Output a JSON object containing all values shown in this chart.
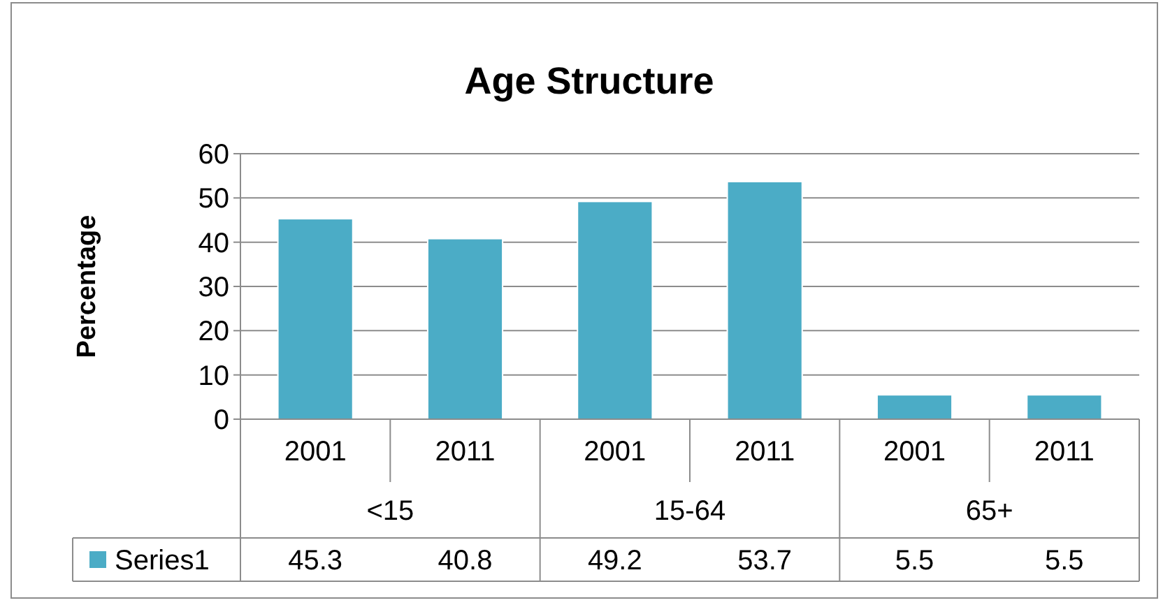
{
  "chart_data": {
    "type": "bar",
    "title": "Age Structure",
    "ylabel": "Percentage",
    "categories": [
      "2001",
      "2011",
      "2001",
      "2011",
      "2001",
      "2011"
    ],
    "annotations": [
      "<15",
      "15-64",
      "65+"
    ],
    "series": [
      {
        "name": "Series1",
        "color": "#4bacc6",
        "values": [
          45.3,
          40.8,
          49.2,
          53.7,
          5.5,
          5.5
        ]
      }
    ],
    "ylim": [
      0,
      60
    ],
    "yticks": [
      0,
      10,
      20,
      30,
      40,
      50,
      60
    ],
    "grid": "y",
    "data_labels": true,
    "legend": "bottom"
  }
}
